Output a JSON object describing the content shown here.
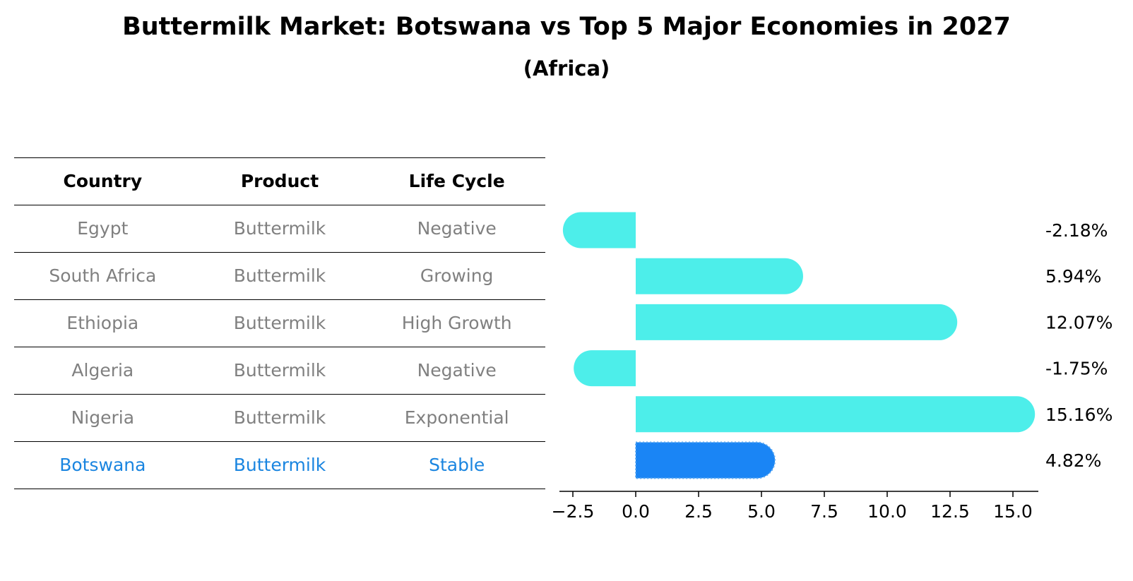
{
  "title": "Buttermilk Market: Botswana vs Top 5 Major Economies in 2027",
  "subtitle": "(Africa)",
  "table": {
    "headers": [
      "Country",
      "Product",
      "Life Cycle"
    ],
    "rows": [
      {
        "country": "Egypt",
        "product": "Buttermilk",
        "life_cycle": "Negative"
      },
      {
        "country": "South Africa",
        "product": "Buttermilk",
        "life_cycle": "Growing"
      },
      {
        "country": "Ethiopia",
        "product": "Buttermilk",
        "life_cycle": "High Growth"
      },
      {
        "country": "Algeria",
        "product": "Buttermilk",
        "life_cycle": "Negative"
      },
      {
        "country": "Nigeria",
        "product": "Buttermilk",
        "life_cycle": "Exponential"
      },
      {
        "country": "Botswana",
        "product": "Buttermilk",
        "life_cycle": "Stable"
      }
    ]
  },
  "colors": {
    "bar": "#4deeea",
    "highlight": "#1a85f5",
    "muted_text": "#808080",
    "highlight_text": "#1a85e0"
  },
  "chart_data": {
    "type": "bar",
    "orientation": "horizontal",
    "categories": [
      "Egypt",
      "South Africa",
      "Ethiopia",
      "Algeria",
      "Nigeria",
      "Botswana"
    ],
    "values": [
      -2.18,
      5.94,
      12.07,
      -1.75,
      15.16,
      4.82
    ],
    "value_labels": [
      "-2.18%",
      "5.94%",
      "12.07%",
      "-1.75%",
      "15.16%",
      "4.82%"
    ],
    "highlight_category": "Botswana",
    "xlim": [
      -3.0,
      16.0
    ],
    "xticks": [
      -2.5,
      0.0,
      2.5,
      5.0,
      7.5,
      10.0,
      12.5,
      15.0
    ],
    "xtick_labels": [
      "−2.5",
      "0.0",
      "2.5",
      "5.0",
      "7.5",
      "10.0",
      "12.5",
      "15.0"
    ],
    "grid": false
  }
}
